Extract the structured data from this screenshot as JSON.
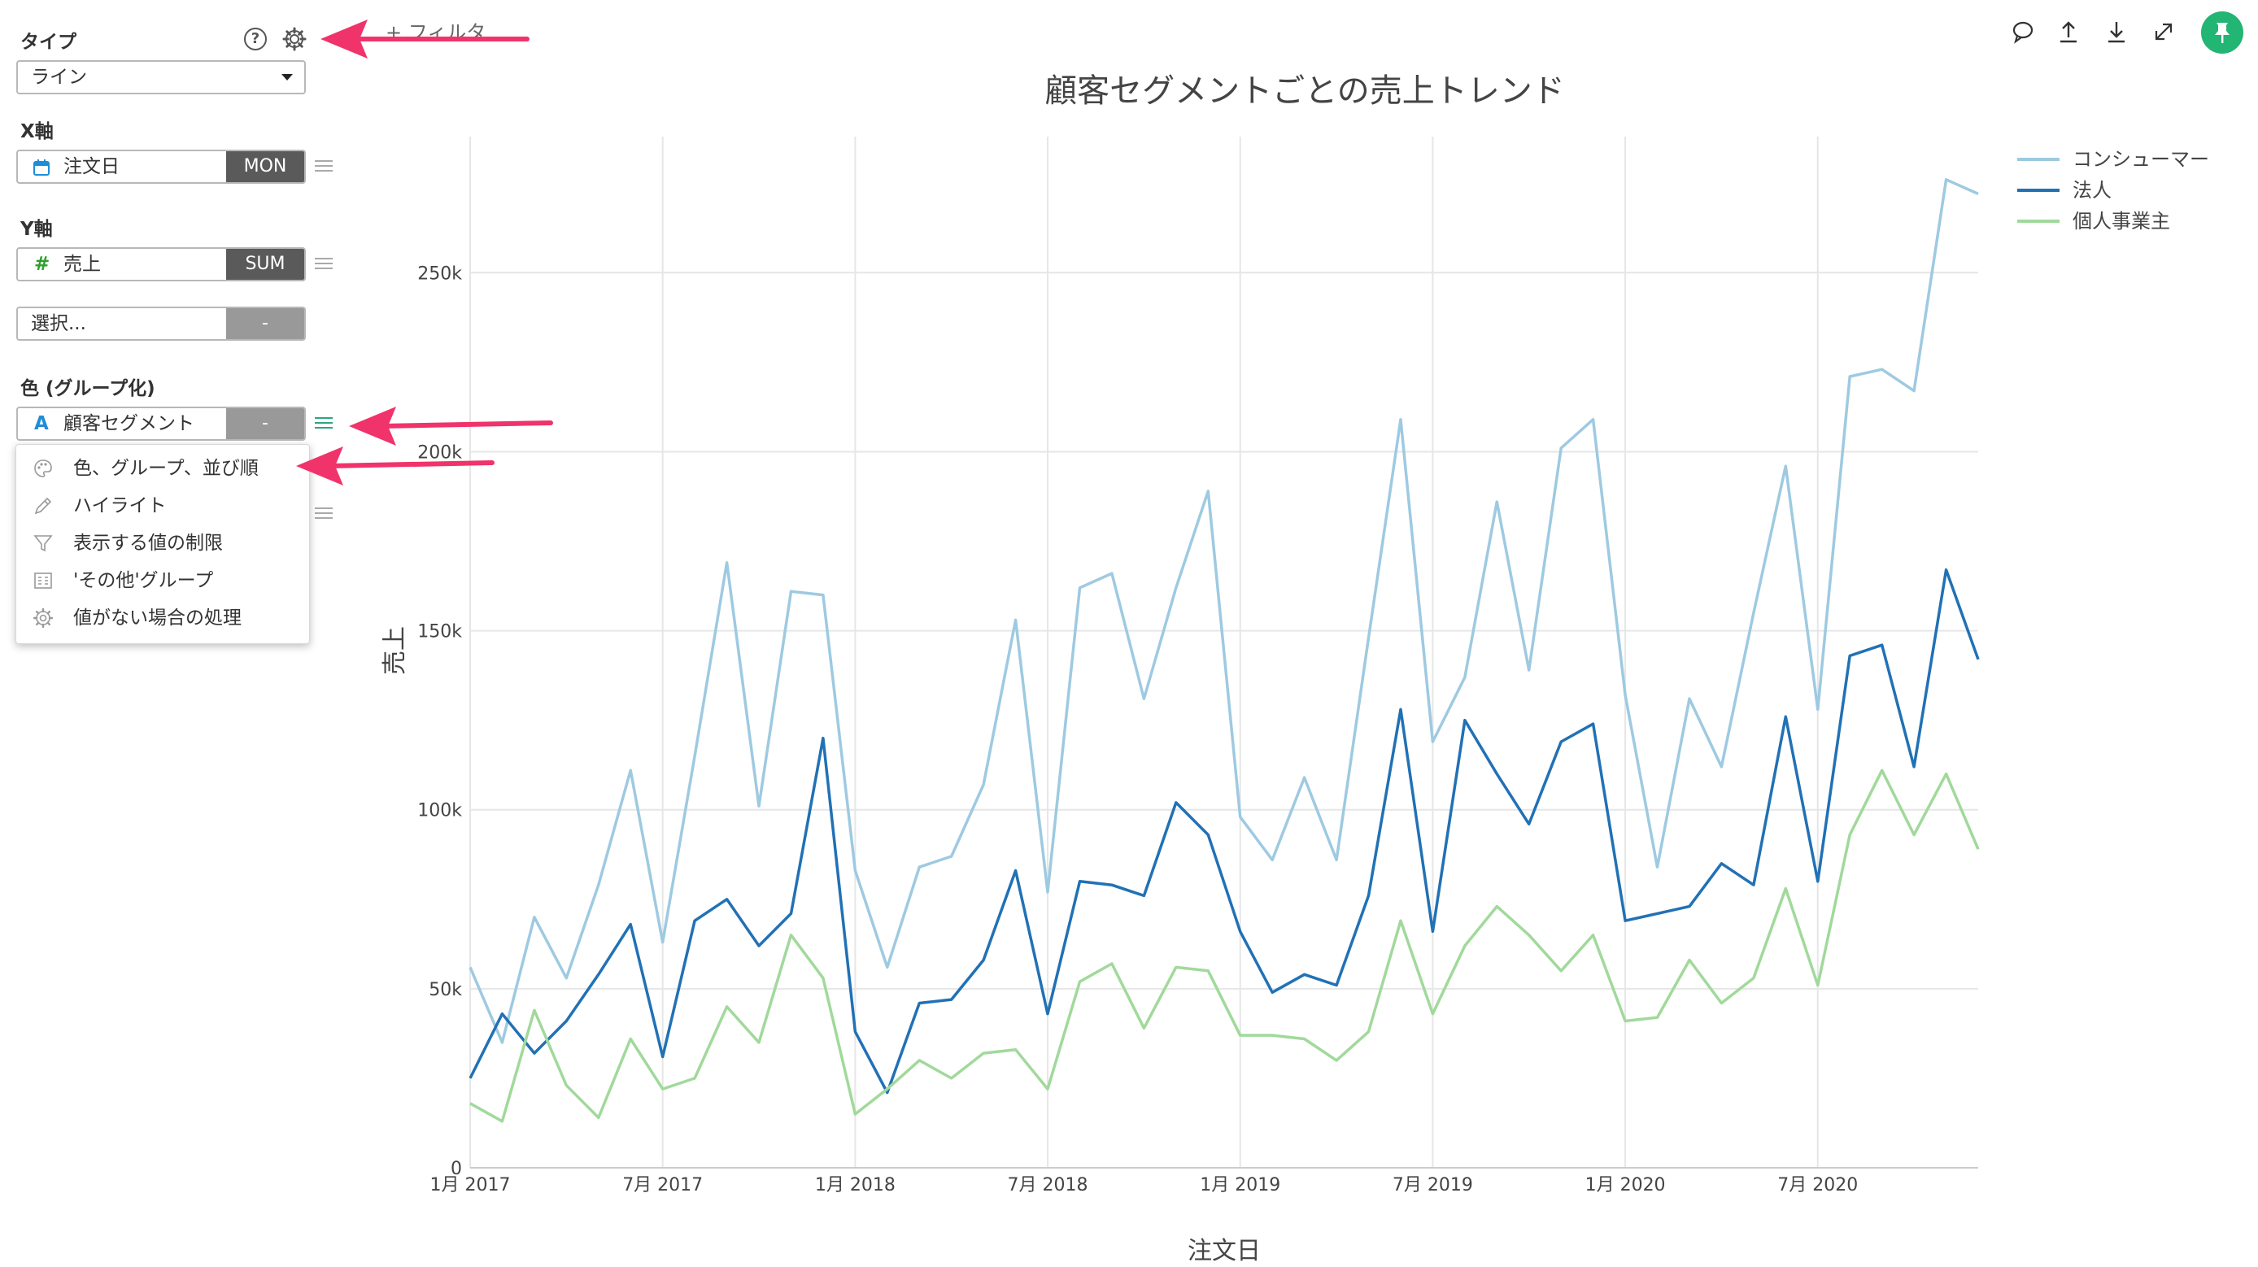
{
  "panel": {
    "type_label": "タイプ",
    "type_value": "ライン",
    "help_icon_text": "?",
    "x_axis_label": "X軸",
    "x_field": "注文日",
    "x_agg": "MON",
    "y_axis_label": "Y軸",
    "y_field_icon": "#",
    "y_field": "売上",
    "y_agg": "SUM",
    "y2_field": "選択...",
    "y2_agg": "-",
    "color_label": "色 (グループ化)",
    "color_field_icon": "A",
    "color_field": "顧客セグメント",
    "color_agg": "-",
    "filter_text": "+ フィルタ"
  },
  "menu": {
    "items": [
      {
        "label": "色、グループ、並び順",
        "icon": "palette-icon"
      },
      {
        "label": "ハイライト",
        "icon": "pencil-icon"
      },
      {
        "label": "表示する値の制限",
        "icon": "filter-icon"
      },
      {
        "label": "'その他'グループ",
        "icon": "group-icon"
      },
      {
        "label": "値がない場合の処理",
        "icon": "gear-icon"
      }
    ]
  },
  "toolbar": {
    "icons": [
      "comment-icon",
      "upload-icon",
      "download-icon",
      "expand-icon",
      "pin-icon"
    ]
  },
  "colors": {
    "consumer": "#9ecae1",
    "corporate": "#2171b5",
    "home_office": "#a1d99b",
    "annotation_arrow": "#f0336b",
    "pin_button": "#22b573"
  },
  "chart_data": {
    "type": "line",
    "title": "顧客セグメントごとの売上トレンド",
    "xlabel": "注文日",
    "ylabel": "売上",
    "x_tick_labels": [
      "1月 2017",
      "7月 2017",
      "1月 2018",
      "7月 2018",
      "1月 2019",
      "7月 2019",
      "1月 2020",
      "7月 2020"
    ],
    "y_tick_labels": [
      "0",
      "50k",
      "100k",
      "150k",
      "200k",
      "250k"
    ],
    "ylim": [
      0,
      288000
    ],
    "legend_position": "top-right",
    "x": [
      "2017-01",
      "2017-02",
      "2017-03",
      "2017-04",
      "2017-05",
      "2017-06",
      "2017-07",
      "2017-08",
      "2017-09",
      "2017-10",
      "2017-11",
      "2017-12",
      "2018-01",
      "2018-02",
      "2018-03",
      "2018-04",
      "2018-05",
      "2018-06",
      "2018-07",
      "2018-08",
      "2018-09",
      "2018-10",
      "2018-11",
      "2018-12",
      "2019-01",
      "2019-02",
      "2019-03",
      "2019-04",
      "2019-05",
      "2019-06",
      "2019-07",
      "2019-08",
      "2019-09",
      "2019-10",
      "2019-11",
      "2019-12",
      "2020-01",
      "2020-02",
      "2020-03",
      "2020-04",
      "2020-05",
      "2020-06",
      "2020-07",
      "2020-08",
      "2020-09",
      "2020-10",
      "2020-11",
      "2020-12"
    ],
    "series": [
      {
        "name": "コンシューマー",
        "color": "#9ecae1",
        "values": [
          56000,
          35000,
          70000,
          53000,
          79000,
          111000,
          63000,
          115000,
          169000,
          101000,
          161000,
          160000,
          83000,
          56000,
          84000,
          87000,
          107000,
          153000,
          77000,
          162000,
          166000,
          131000,
          162000,
          189000,
          98000,
          86000,
          109000,
          86000,
          148000,
          209000,
          119000,
          137000,
          186000,
          139000,
          201000,
          209000,
          132000,
          84000,
          131000,
          112000,
          155000,
          196000,
          128000,
          221000,
          223000,
          217000,
          276000,
          272000
        ]
      },
      {
        "name": "法人",
        "color": "#2171b5",
        "values": [
          25000,
          43000,
          32000,
          41000,
          54000,
          68000,
          31000,
          69000,
          75000,
          62000,
          71000,
          120000,
          38000,
          21000,
          46000,
          47000,
          58000,
          83000,
          43000,
          80000,
          79000,
          76000,
          102000,
          93000,
          66000,
          49000,
          54000,
          51000,
          76000,
          128000,
          66000,
          125000,
          110000,
          96000,
          119000,
          124000,
          69000,
          71000,
          73000,
          85000,
          79000,
          126000,
          80000,
          143000,
          146000,
          112000,
          167000,
          142000
        ]
      },
      {
        "name": "個人事業主",
        "color": "#a1d99b",
        "values": [
          18000,
          13000,
          44000,
          23000,
          14000,
          36000,
          22000,
          25000,
          45000,
          35000,
          65000,
          53000,
          15000,
          22000,
          30000,
          25000,
          32000,
          33000,
          22000,
          52000,
          57000,
          39000,
          56000,
          55000,
          37000,
          37000,
          36000,
          30000,
          38000,
          69000,
          43000,
          62000,
          73000,
          65000,
          55000,
          65000,
          41000,
          42000,
          58000,
          46000,
          53000,
          78000,
          51000,
          93000,
          111000,
          93000,
          110000,
          89000
        ]
      }
    ]
  }
}
